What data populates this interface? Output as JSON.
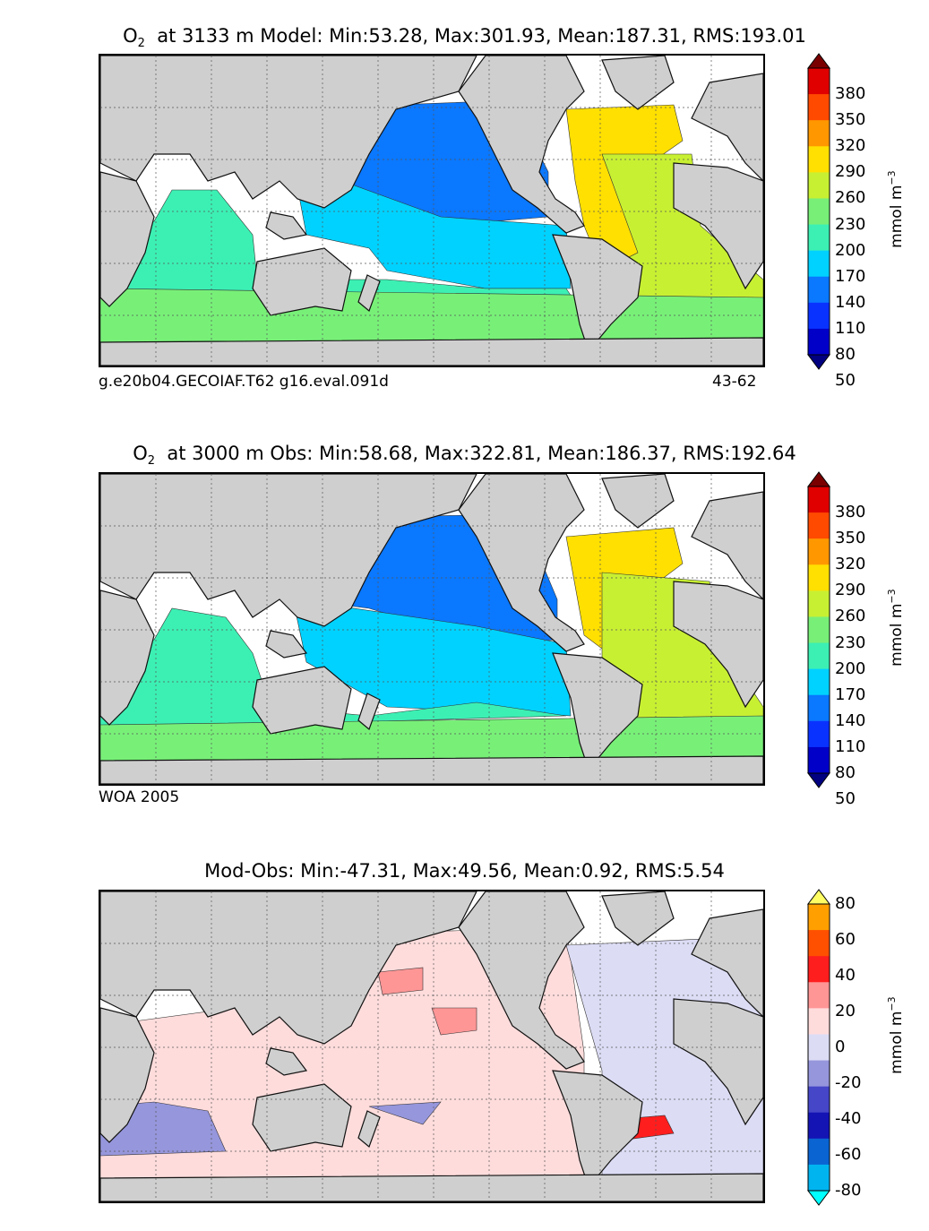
{
  "panels": [
    {
      "title_prefix": "O",
      "title_sub": "2",
      "title_rest": "at 3133 m Model: Min:53.28, Max:301.93, Mean:187.31, RMS:193.01",
      "note_left": "g.e20b04.GECOIAF.T62 g16.eval.091d",
      "note_right": "43-62",
      "unit": "mmol m",
      "unit_exp": "−3",
      "ticks": [
        "380",
        "350",
        "320",
        "290",
        "260",
        "230",
        "200",
        "170",
        "140",
        "110",
        "80",
        "50"
      ],
      "colors": [
        "#7a0000",
        "#e00000",
        "#ff4a00",
        "#ff9800",
        "#ffe000",
        "#c8f032",
        "#78f078",
        "#3cf0b4",
        "#00d2ff",
        "#0a78ff",
        "#0a32ff",
        "#0000c8",
        "#000080"
      ]
    },
    {
      "title_prefix": "O",
      "title_sub": "2",
      "title_rest": "at 3000 m Obs: Min:58.68, Max:322.81, Mean:186.37, RMS:192.64",
      "note_left": "WOA 2005",
      "note_right": "",
      "unit": "mmol m",
      "unit_exp": "−3",
      "ticks": [
        "380",
        "350",
        "320",
        "290",
        "260",
        "230",
        "200",
        "170",
        "140",
        "110",
        "80",
        "50"
      ],
      "colors": [
        "#7a0000",
        "#e00000",
        "#ff4a00",
        "#ff9800",
        "#ffe000",
        "#c8f032",
        "#78f078",
        "#3cf0b4",
        "#00d2ff",
        "#0a78ff",
        "#0a32ff",
        "#0000c8",
        "#000080"
      ]
    },
    {
      "title_prefix": "",
      "title_sub": "",
      "title_rest": "Mod-Obs: Min:-47.31, Max:49.56, Mean:0.92, RMS:5.54",
      "note_left": "",
      "note_right": "",
      "unit": "mmol m",
      "unit_exp": "−3",
      "ticks": [
        "80",
        "60",
        "40",
        "20",
        "0",
        "-20",
        "-40",
        "-60",
        "-80"
      ],
      "colors": [
        "#ffff64",
        "#ffa000",
        "#ff5000",
        "#ff1e1e",
        "#ff9696",
        "#ffdcdc",
        "#dcdcf5",
        "#9696dc",
        "#4646c8",
        "#1414b4",
        "#0a64d2",
        "#00b4f0",
        "#00ffff"
      ]
    }
  ],
  "fields": {
    "model": {
      "north_pacific": "#0a78ff",
      "south_pacific": "#00d2ff",
      "atlantic_north": "#ffe000",
      "atlantic_south": "#c8f032",
      "indian": "#3cf0b4",
      "southern": "#78f078",
      "arctic": "#ff9800"
    },
    "obs": {
      "north_pacific": "#0a78ff",
      "south_pacific": "#00d2ff",
      "atlantic_north": "#ffe000",
      "atlantic_south": "#c8f032",
      "indian": "#3cf0b4",
      "southern": "#78f078",
      "arctic": "#ff9800"
    },
    "diff": {
      "base": "#ffdcdc",
      "neg": "#dcdcf5",
      "pos_strong": "#ff9696",
      "neg_strong": "#9696dc",
      "max": "#ff1e1e"
    }
  }
}
